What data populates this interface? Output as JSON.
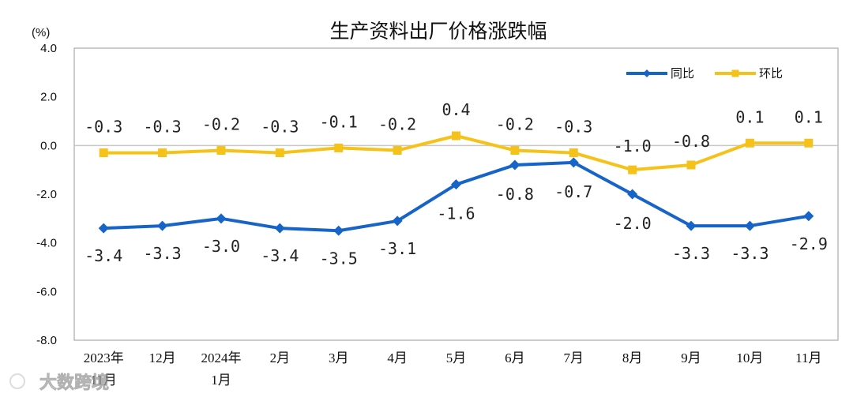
{
  "chart_data": {
    "type": "line",
    "title": "生产资料出厂价格涨跌幅",
    "unit_label": "(%)",
    "categories": [
      "2023年11月",
      "12月",
      "2024年1月",
      "2月",
      "3月",
      "4月",
      "5月",
      "6月",
      "7月",
      "8月",
      "9月",
      "10月",
      "11月"
    ],
    "category_lines": [
      [
        "2023年",
        "11月"
      ],
      [
        "12月"
      ],
      [
        "2024年",
        "1月"
      ],
      [
        "2月"
      ],
      [
        "3月"
      ],
      [
        "4月"
      ],
      [
        "5月"
      ],
      [
        "6月"
      ],
      [
        "7月"
      ],
      [
        "8月"
      ],
      [
        "9月"
      ],
      [
        "10月"
      ],
      [
        "11月"
      ]
    ],
    "y_ticks": [
      "4.0",
      "2.0",
      "0.0",
      "-2.0",
      "-4.0",
      "-6.0",
      "-8.0"
    ],
    "ylim": [
      -8,
      4
    ],
    "legend_position": "top-right",
    "series": [
      {
        "name": "同比",
        "color": "#1764c9",
        "marker": "diamond",
        "values": [
          -3.4,
          -3.3,
          -3.0,
          -3.4,
          -3.5,
          -3.1,
          -1.6,
          -0.8,
          -0.7,
          -2.0,
          -3.3,
          -3.3,
          -2.9
        ],
        "labels": [
          "-3.4",
          "-3.3",
          "-3.0",
          "-3.4",
          "-3.5",
          "-3.1",
          "-1.6",
          "-0.8",
          "-0.7",
          "-2.0",
          "-3.3",
          "-3.3",
          "-2.9"
        ]
      },
      {
        "name": "环比",
        "color": "#f5c21a",
        "marker": "square",
        "values": [
          -0.3,
          -0.3,
          -0.2,
          -0.3,
          -0.1,
          -0.2,
          0.4,
          -0.2,
          -0.3,
          -1.0,
          -0.8,
          0.1,
          0.1
        ],
        "labels": [
          "-0.3",
          "-0.3",
          "-0.2",
          "-0.3",
          "-0.1",
          "-0.2",
          "0.4",
          "-0.2",
          "-0.3",
          "-1.0",
          "-0.8",
          "0.1",
          "0.1"
        ]
      }
    ],
    "zero_line_color": "#c8c8c8"
  },
  "watermark": {
    "text": "大数跨境"
  }
}
